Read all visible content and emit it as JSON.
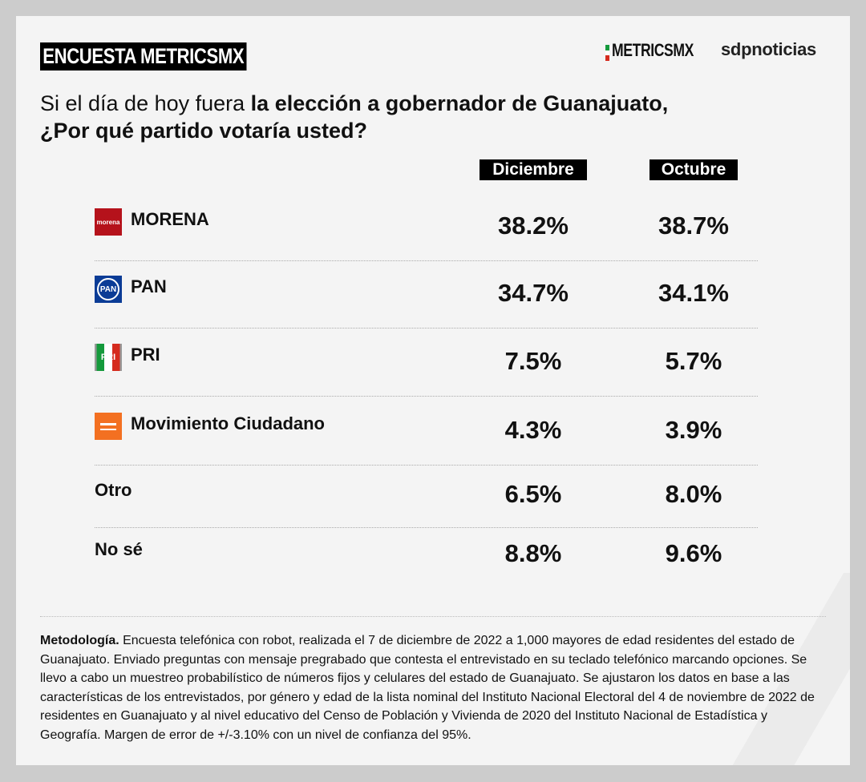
{
  "header": {
    "badge": "ENCUESTA METRICSMX",
    "logo_metrics": "METRICSMX",
    "logo_sdp": "sdpnoticias"
  },
  "question": {
    "part1": "Si el día de hoy fuera ",
    "part2": "la elección a gobernador de Guanajuato,",
    "part3": "¿Por qué partido votaría usted?"
  },
  "colors": {
    "morena": "#b5121b",
    "pan": "#0b3c96",
    "pri_green": "#159a3c",
    "pri_red": "#d52b1e",
    "mc": "#f37021"
  },
  "chart_data": {
    "type": "table",
    "columns": [
      "Diciembre",
      "Octubre"
    ],
    "rows": [
      {
        "label": "MORENA",
        "icon": "morena-logo-icon",
        "icon_text": "morena",
        "values": [
          "38.2%",
          "38.7%"
        ]
      },
      {
        "label": "PAN",
        "icon": "pan-logo-icon",
        "icon_text": "PAN",
        "values": [
          "34.7%",
          "34.1%"
        ]
      },
      {
        "label": "PRI",
        "icon": "pri-logo-icon",
        "icon_text": "PRI",
        "values": [
          "7.5%",
          "5.7%"
        ]
      },
      {
        "label": "Movimiento Ciudadano",
        "icon": "mc-logo-icon",
        "values": [
          "4.3%",
          "3.9%"
        ]
      },
      {
        "label": "Otro",
        "values": [
          "6.5%",
          "8.0%"
        ]
      },
      {
        "label": "No sé",
        "values": [
          "8.8%",
          "9.6%"
        ]
      }
    ]
  },
  "methodology": {
    "title": "Metodología.",
    "text": " Encuesta telefónica con robot, realizada el 7 de diciembre de 2022 a 1,000 mayores de edad residentes del estado de Guanajuato. Enviado preguntas con mensaje pregrabado que contesta el entrevistado en su teclado telefónico marcando opciones. Se llevo a cabo un muestreo probabilístico de números fijos y celulares del estado de Guanajuato. Se ajustaron los datos en base a las características de los entrevistados, por género y edad de la lista nominal del Instituto Nacional Electoral del 4 de noviembre de 2022 de residentes en Guanajuato y al nivel educativo del Censo de Población y Vivienda de 2020 del Instituto Nacional de Estadística y Geografía. Margen de error de +/-3.10% con un nivel de confianza del 95%."
  }
}
